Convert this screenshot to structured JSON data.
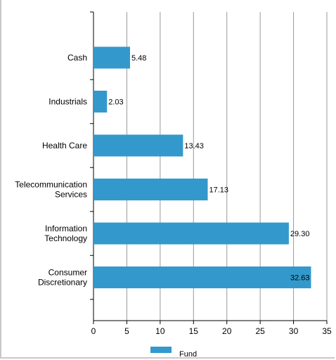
{
  "chart_data": {
    "type": "bar",
    "orientation": "horizontal",
    "categories": [
      [
        "Cash"
      ],
      [
        "Industrials"
      ],
      [
        "Health Care"
      ],
      [
        "Telecommunication",
        "Services"
      ],
      [
        "Information",
        "Technology"
      ],
      [
        "Consumer",
        "Discretionary"
      ]
    ],
    "series": [
      {
        "name": "Fund",
        "values": [
          5.48,
          2.03,
          13.43,
          17.13,
          29.3,
          32.63
        ],
        "value_labels": [
          "5.48",
          "2.03",
          "13.43",
          "17.13",
          "29.30",
          "32.63"
        ],
        "color": "#3399cc"
      }
    ],
    "xlim": [
      0,
      35
    ],
    "xticks": [
      0,
      5,
      10,
      15,
      20,
      25,
      30,
      35
    ],
    "grid": "vertical",
    "legend": "bottom-center",
    "title": "",
    "xlabel": "",
    "ylabel": ""
  }
}
